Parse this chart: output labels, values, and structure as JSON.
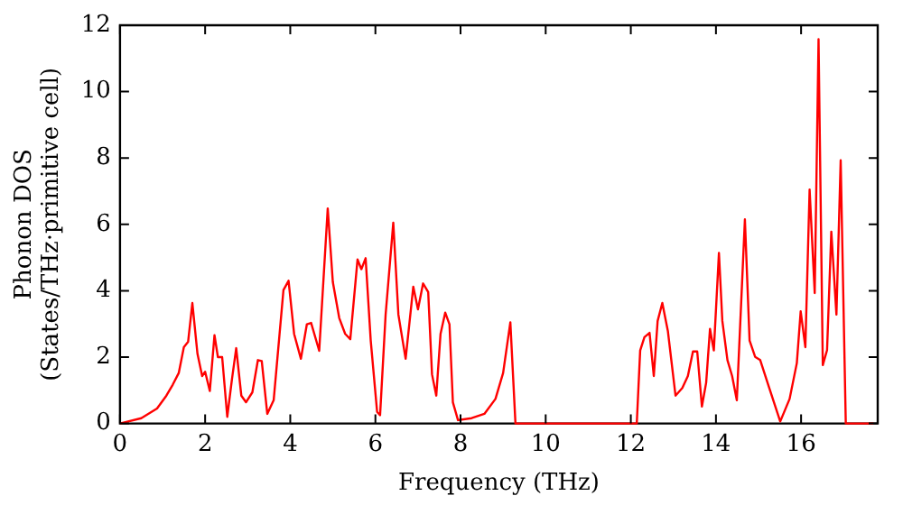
{
  "chart_data": {
    "type": "line",
    "xlabel": "Frequency (THz)",
    "ylabel": "Phonon DOS\n(States/THz·primitive cell)",
    "xlim": [
      0,
      17.8
    ],
    "ylim": [
      0,
      12
    ],
    "xticks": [
      0,
      2,
      4,
      6,
      8,
      10,
      12,
      14,
      16
    ],
    "yticks": [
      0,
      2,
      4,
      6,
      8,
      10,
      12
    ],
    "grid": false,
    "legend": false,
    "marker": "none",
    "line_style": "solid",
    "series": [
      {
        "color": "#ff0000",
        "x": [
          0,
          0.5,
          0.87,
          1.09,
          1.24,
          1.38,
          1.5,
          1.6,
          1.7,
          1.82,
          1.93,
          2.0,
          2.11,
          2.22,
          2.3,
          2.4,
          2.52,
          2.63,
          2.73,
          2.85,
          2.96,
          3.11,
          3.24,
          3.33,
          3.46,
          3.61,
          3.84,
          3.96,
          4.09,
          4.25,
          4.39,
          4.49,
          4.68,
          4.88,
          5.0,
          5.15,
          5.29,
          5.41,
          5.58,
          5.67,
          5.77,
          5.89,
          6.04,
          6.11,
          6.24,
          6.42,
          6.54,
          6.71,
          6.89,
          7.0,
          7.12,
          7.24,
          7.33,
          7.43,
          7.53,
          7.64,
          7.74,
          7.82,
          7.94,
          8.26,
          8.56,
          8.82,
          9.0,
          9.17,
          9.29,
          12.14,
          12.22,
          12.32,
          12.44,
          12.54,
          12.63,
          12.74,
          12.87,
          13.05,
          13.21,
          13.34,
          13.46,
          13.56,
          13.67,
          13.77,
          13.86,
          13.95,
          14.07,
          14.15,
          14.27,
          14.38,
          14.49,
          14.68,
          14.79,
          14.92,
          15.04,
          15.26,
          15.51,
          15.73,
          15.9,
          15.99,
          16.1,
          16.2,
          16.32,
          16.41,
          16.51,
          16.61,
          16.71,
          16.83,
          16.93,
          17.05,
          17.7
        ],
        "values": [
          0,
          0.16,
          0.45,
          0.84,
          1.17,
          1.52,
          2.3,
          2.46,
          3.63,
          2.1,
          1.43,
          1.56,
          0.98,
          2.66,
          2.0,
          2.0,
          0.2,
          1.33,
          2.27,
          0.84,
          0.64,
          0.94,
          1.91,
          1.88,
          0.29,
          0.7,
          4.02,
          4.3,
          2.7,
          1.95,
          2.99,
          3.03,
          2.19,
          6.48,
          4.26,
          3.18,
          2.7,
          2.54,
          4.94,
          4.65,
          4.98,
          2.5,
          0.35,
          0.25,
          3.28,
          6.05,
          3.28,
          1.95,
          4.12,
          3.44,
          4.22,
          3.96,
          1.48,
          0.84,
          2.7,
          3.34,
          2.99,
          0.64,
          0.1,
          0.16,
          0.29,
          0.74,
          1.52,
          3.05,
          0,
          0,
          2.2,
          2.6,
          2.73,
          1.43,
          3.09,
          3.63,
          2.79,
          0.84,
          1.07,
          1.43,
          2.17,
          2.17,
          0.51,
          1.23,
          2.85,
          2.2,
          5.14,
          3.09,
          1.91,
          1.43,
          0.7,
          6.15,
          2.5,
          2.01,
          1.91,
          1.04,
          0.06,
          0.74,
          1.82,
          3.38,
          2.3,
          7.05,
          3.93,
          11.58,
          1.76,
          2.21,
          5.78,
          3.28,
          7.93,
          0,
          0
        ]
      }
    ]
  }
}
